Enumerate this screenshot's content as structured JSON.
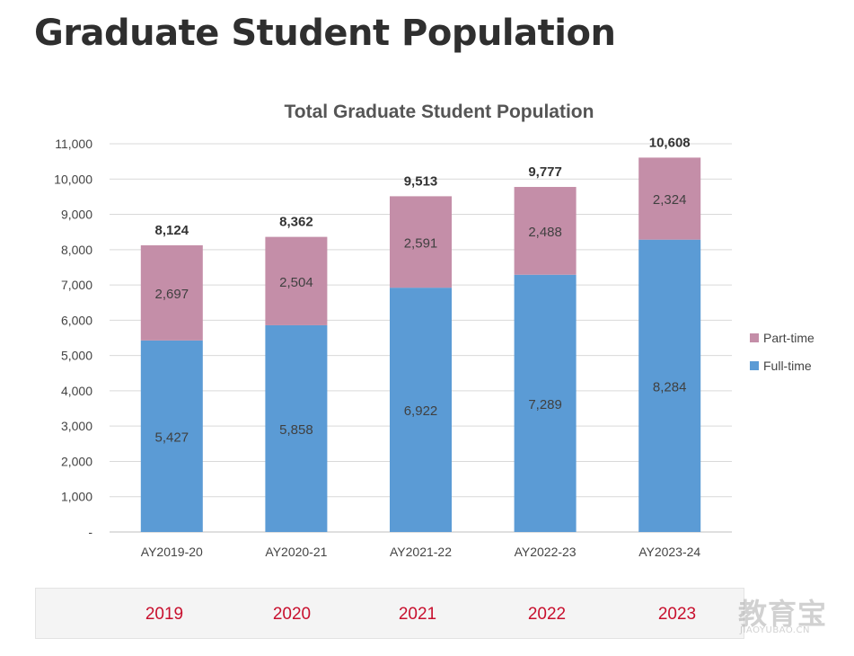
{
  "page": {
    "title": "Graduate Student Population"
  },
  "year_tabs": [
    "2019",
    "2020",
    "2021",
    "2022",
    "2023"
  ],
  "watermark": {
    "cn": "教育宝",
    "en": "JIAOYUBAO.CN"
  },
  "chart_data": {
    "type": "bar",
    "stacked": true,
    "title": "Total Graduate Student Population",
    "xlabel": "",
    "ylabel": "",
    "categories": [
      "AY2019-20",
      "AY2020-21",
      "AY2021-22",
      "AY2022-23",
      "AY2023-24"
    ],
    "series": [
      {
        "name": "Full-time",
        "color": "#5b9bd5",
        "values": [
          5427,
          5858,
          6922,
          7289,
          8284
        ]
      },
      {
        "name": "Part-time",
        "color": "#c48ea8",
        "values": [
          2697,
          2504,
          2591,
          2488,
          2324
        ]
      }
    ],
    "totals": [
      8124,
      8362,
      9513,
      9777,
      10608
    ],
    "ylim": [
      0,
      11000
    ],
    "y_ticks": [
      "-",
      "1,000",
      "2,000",
      "3,000",
      "4,000",
      "5,000",
      "6,000",
      "7,000",
      "8,000",
      "9,000",
      "10,000",
      "11,000"
    ],
    "grid": true,
    "legend_position": "right"
  }
}
